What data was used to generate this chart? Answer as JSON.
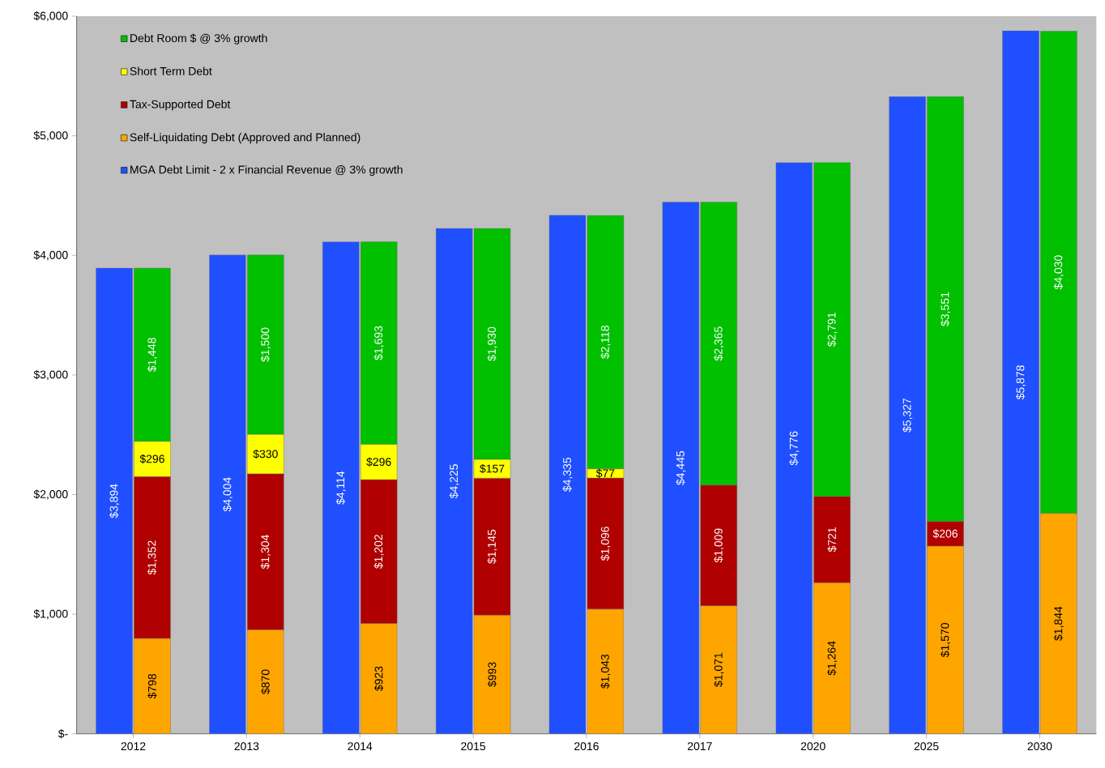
{
  "chart_data": [
    {
      "type": "bar",
      "categories": [
        "2012",
        "2013",
        "2014",
        "2015",
        "2016",
        "2017",
        "2020",
        "2025",
        "2030"
      ],
      "series": [
        {
          "name": "MGA Debt Limit - 2 x Financial Revenue @ 3% growth",
          "color": "#1f4fff",
          "values": [
            3894,
            4004,
            4114,
            4225,
            4335,
            4445,
            4776,
            5327,
            5878
          ],
          "value_labels": [
            "$3,894",
            "$4,004",
            "$4,114",
            "$4,225",
            "$4,335",
            "$4,445",
            "$4,776",
            "$5,327",
            "$5,878"
          ]
        }
      ],
      "ylim": [
        0,
        6000
      ],
      "yticks": [
        {
          "value": 0,
          "label": "$-"
        },
        {
          "value": 1000,
          "label": "$1,000"
        },
        {
          "value": 2000,
          "label": "$2,000"
        },
        {
          "value": 3000,
          "label": "$3,000"
        },
        {
          "value": 4000,
          "label": "$4,000"
        },
        {
          "value": 5000,
          "label": "$5,000"
        },
        {
          "value": 6000,
          "label": "$6,000"
        }
      ],
      "legend": "top left"
    },
    {
      "type": "bar",
      "stacked": true,
      "categories": [
        "2012",
        "2013",
        "2014",
        "2015",
        "2016",
        "2017",
        "2020",
        "2025",
        "2030"
      ],
      "series": [
        {
          "name": "Self-Liquidating Debt (Approved and Planned)",
          "color": "#ffa500",
          "values": [
            798,
            870,
            923,
            993,
            1043,
            1071,
            1264,
            1570,
            1844
          ],
          "value_labels": [
            "$798",
            "$870",
            "$923",
            "$993",
            "$1,043",
            "$1,071",
            "$1,264",
            "$1,570",
            "$1,844"
          ]
        },
        {
          "name": "Tax-Supported Debt",
          "color": "#b00000",
          "values": [
            1352,
            1304,
            1202,
            1145,
            1096,
            1009,
            721,
            206,
            null
          ],
          "value_labels": [
            "$1,352",
            "$1,304",
            "$1,202",
            "$1,145",
            "$1,096",
            "$1,009",
            "$721",
            "$206",
            null
          ]
        },
        {
          "name": "Short Term Debt",
          "color": "#ffff00",
          "values": [
            296,
            330,
            296,
            157,
            77,
            null,
            null,
            null,
            null
          ],
          "value_labels": [
            "$296",
            "$330",
            "$296",
            "$157",
            "$77",
            null,
            null,
            null,
            null
          ]
        },
        {
          "name": "Debt Room $ @ 3% growth",
          "color": "#00c000",
          "values": [
            1448,
            1500,
            1693,
            1930,
            2118,
            2365,
            2791,
            3551,
            4030
          ],
          "value_labels": [
            "$1,448",
            "$1,500",
            "$1,693",
            "$1,930",
            "$2,118",
            "$2,365",
            "$2,791",
            "$3,551",
            "$4,030"
          ]
        }
      ],
      "ylim": [
        0,
        6000
      ],
      "tick_labels": false,
      "legend": "top left"
    }
  ]
}
